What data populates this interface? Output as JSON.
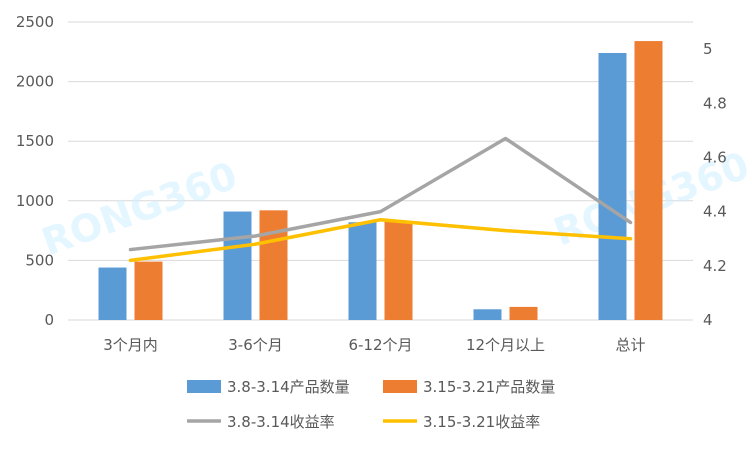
{
  "chart_data": {
    "type": "bar",
    "categories": [
      "3个月内",
      "3-6个月",
      "6-12个月",
      "12个月以上",
      "总计"
    ],
    "series": [
      {
        "name": "3.8-3.14产品数量",
        "kind": "bar",
        "axis": "left",
        "color": "#5b9bd5",
        "values": [
          440,
          910,
          820,
          90,
          2240
        ]
      },
      {
        "name": "3.15-3.21产品数量",
        "kind": "bar",
        "axis": "left",
        "color": "#ed7d31",
        "values": [
          490,
          920,
          830,
          110,
          2340
        ]
      },
      {
        "name": "3.8-3.14收益率",
        "kind": "line",
        "axis": "right",
        "color": "#a5a5a5",
        "values": [
          4.26,
          4.31,
          4.4,
          4.67,
          4.36
        ]
      },
      {
        "name": "3.15-3.21收益率",
        "kind": "line",
        "axis": "right",
        "color": "#ffc000",
        "values": [
          4.22,
          4.28,
          4.37,
          4.33,
          4.3
        ]
      }
    ],
    "y_left": {
      "range": [
        0,
        2500
      ],
      "ticks": [
        "0",
        "500",
        "1000",
        "1500",
        "2000",
        "2500"
      ]
    },
    "y_right": {
      "range": [
        4,
        5.1
      ],
      "ticks": [
        "4",
        "4.2",
        "4.4",
        "4.6",
        "4.8",
        "5"
      ]
    },
    "grid": true,
    "legend_position": "bottom"
  },
  "watermark": {
    "text": "RONG360",
    "color": "#cfefff"
  }
}
